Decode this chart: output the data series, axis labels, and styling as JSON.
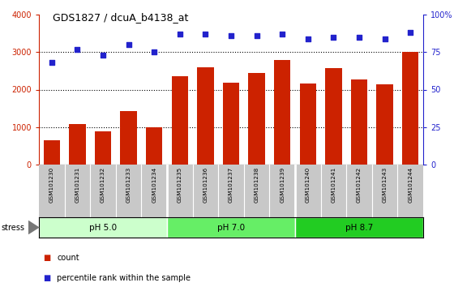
{
  "title": "GDS1827 / dcuA_b4138_at",
  "samples": [
    "GSM101230",
    "GSM101231",
    "GSM101232",
    "GSM101233",
    "GSM101234",
    "GSM101235",
    "GSM101236",
    "GSM101237",
    "GSM101238",
    "GSM101239",
    "GSM101240",
    "GSM101241",
    "GSM101242",
    "GSM101243",
    "GSM101244"
  ],
  "counts": [
    650,
    1090,
    890,
    1420,
    1000,
    2360,
    2600,
    2180,
    2450,
    2800,
    2170,
    2570,
    2260,
    2140,
    3000
  ],
  "percentile_ranks": [
    68,
    77,
    73,
    80,
    75,
    87,
    87,
    86,
    86,
    87,
    84,
    85,
    85,
    84,
    88
  ],
  "bar_color": "#cc2200",
  "dot_color": "#2222cc",
  "ylim_left": [
    0,
    4000
  ],
  "ylim_right": [
    0,
    100
  ],
  "yticks_left": [
    0,
    1000,
    2000,
    3000,
    4000
  ],
  "ytick_labels_left": [
    "0",
    "1000",
    "2000",
    "3000",
    "4000"
  ],
  "yticks_right": [
    0,
    25,
    50,
    75,
    100
  ],
  "ytick_labels_right": [
    "0",
    "25",
    "50",
    "75",
    "100%"
  ],
  "grid_values": [
    1000,
    2000,
    3000
  ],
  "stress_groups": [
    {
      "label": "pH 5.0",
      "start": 0,
      "end": 5,
      "color": "#ccffcc"
    },
    {
      "label": "pH 7.0",
      "start": 5,
      "end": 10,
      "color": "#66ee66"
    },
    {
      "label": "pH 8.7",
      "start": 10,
      "end": 15,
      "color": "#22cc22"
    }
  ],
  "stress_label": "stress",
  "legend_count_label": "count",
  "legend_pct_label": "percentile rank within the sample",
  "xtick_bg_color": "#c8c8c8",
  "xtick_sep_color": "#ffffff"
}
